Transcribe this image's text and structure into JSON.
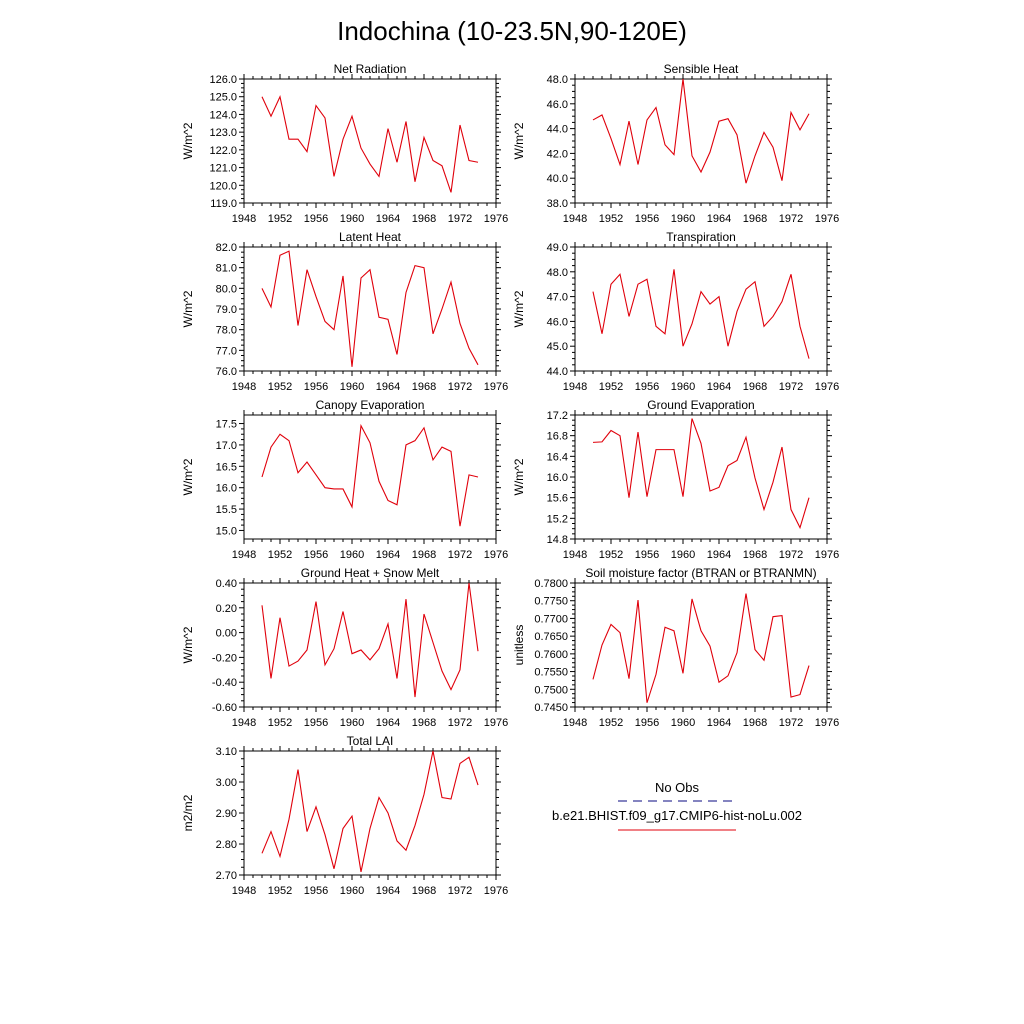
{
  "page": {
    "title": "Indochina (10-23.5N,90-120E)"
  },
  "legend": {
    "obs_label": "No Obs",
    "obs_color": "#3a3a9a",
    "model_label": "b.e21.BHIST.f09_g17.CMIP6-hist-noLu.002",
    "model_color": "#e0000b"
  },
  "chart_data": [
    {
      "type": "line",
      "title": "Net Radiation",
      "ylabel": "W/m^2",
      "xlim": [
        1948,
        1976
      ],
      "ylim": [
        119,
        126
      ],
      "xticks": [
        "1948",
        "1952",
        "1956",
        "1960",
        "1964",
        "1968",
        "1972",
        "1976"
      ],
      "yticks": [
        "119.0",
        "120.0",
        "121.0",
        "122.0",
        "123.0",
        "124.0",
        "125.0",
        "126.0"
      ],
      "grid": false,
      "x": [
        1950,
        1951,
        1952,
        1953,
        1954,
        1955,
        1956,
        1957,
        1958,
        1959,
        1960,
        1961,
        1962,
        1963,
        1964,
        1965,
        1966,
        1967,
        1968,
        1969,
        1970,
        1971,
        1972,
        1973,
        1974
      ],
      "series": [
        {
          "values": [
            125.0,
            123.9,
            125.0,
            122.6,
            122.6,
            121.9,
            124.5,
            123.8,
            120.5,
            122.6,
            123.9,
            122.1,
            121.2,
            120.5,
            123.2,
            121.3,
            123.6,
            120.2,
            122.7,
            121.4,
            121.1,
            119.6,
            123.4,
            121.4,
            121.3
          ]
        }
      ]
    },
    {
      "type": "line",
      "title": "Sensible Heat",
      "ylabel": "W/m^2",
      "xlim": [
        1948,
        1976
      ],
      "ylim": [
        38,
        48
      ],
      "xticks": [
        "1948",
        "1952",
        "1956",
        "1960",
        "1964",
        "1968",
        "1972",
        "1976"
      ],
      "yticks": [
        "38.0",
        "40.0",
        "42.0",
        "44.0",
        "46.0",
        "48.0"
      ],
      "grid": false,
      "x": [
        1950,
        1951,
        1952,
        1953,
        1954,
        1955,
        1956,
        1957,
        1958,
        1959,
        1960,
        1961,
        1962,
        1963,
        1964,
        1965,
        1966,
        1967,
        1968,
        1969,
        1970,
        1971,
        1972,
        1973,
        1974
      ],
      "series": [
        {
          "values": [
            44.7,
            45.1,
            43.2,
            41.1,
            44.6,
            41.1,
            44.7,
            45.7,
            42.7,
            41.9,
            48.0,
            41.8,
            40.5,
            42.1,
            44.6,
            44.8,
            43.5,
            39.6,
            41.8,
            43.7,
            42.5,
            39.8,
            45.3,
            43.9,
            45.2
          ]
        }
      ]
    },
    {
      "type": "line",
      "title": "Latent Heat",
      "ylabel": "W/m^2",
      "xlim": [
        1948,
        1976
      ],
      "ylim": [
        76,
        82
      ],
      "xticks": [
        "1948",
        "1952",
        "1956",
        "1960",
        "1964",
        "1968",
        "1972",
        "1976"
      ],
      "yticks": [
        "76.0",
        "77.0",
        "78.0",
        "79.0",
        "80.0",
        "81.0",
        "82.0"
      ],
      "grid": false,
      "x": [
        1950,
        1951,
        1952,
        1953,
        1954,
        1955,
        1956,
        1957,
        1958,
        1959,
        1960,
        1961,
        1962,
        1963,
        1964,
        1965,
        1966,
        1967,
        1968,
        1969,
        1970,
        1971,
        1972,
        1973,
        1974
      ],
      "series": [
        {
          "values": [
            80.0,
            79.1,
            81.6,
            81.8,
            78.2,
            80.9,
            79.6,
            78.4,
            78.0,
            80.6,
            76.2,
            80.5,
            80.9,
            78.6,
            78.5,
            76.8,
            79.8,
            81.1,
            81.0,
            77.8,
            79.0,
            80.3,
            78.3,
            77.1,
            76.3
          ]
        }
      ]
    },
    {
      "type": "line",
      "title": "Transpiration",
      "ylabel": "W/m^2",
      "xlim": [
        1948,
        1976
      ],
      "ylim": [
        44,
        49
      ],
      "xticks": [
        "1948",
        "1952",
        "1956",
        "1960",
        "1964",
        "1968",
        "1972",
        "1976"
      ],
      "yticks": [
        "44.0",
        "45.0",
        "46.0",
        "47.0",
        "48.0",
        "49.0"
      ],
      "grid": false,
      "x": [
        1950,
        1951,
        1952,
        1953,
        1954,
        1955,
        1956,
        1957,
        1958,
        1959,
        1960,
        1961,
        1962,
        1963,
        1964,
        1965,
        1966,
        1967,
        1968,
        1969,
        1970,
        1971,
        1972,
        1973,
        1974
      ],
      "series": [
        {
          "values": [
            47.2,
            45.5,
            47.5,
            47.9,
            46.2,
            47.5,
            47.7,
            45.8,
            45.5,
            48.1,
            45.0,
            45.9,
            47.2,
            46.7,
            47.0,
            45.0,
            46.4,
            47.3,
            47.6,
            45.8,
            46.2,
            46.8,
            47.9,
            45.8,
            44.5
          ]
        }
      ]
    },
    {
      "type": "line",
      "title": "Canopy Evaporation",
      "ylabel": "W/m^2",
      "xlim": [
        1948,
        1976
      ],
      "ylim": [
        14.8,
        17.7
      ],
      "xticks": [
        "1948",
        "1952",
        "1956",
        "1960",
        "1964",
        "1968",
        "1972",
        "1976"
      ],
      "yticks": [
        "15.0",
        "15.5",
        "16.0",
        "16.5",
        "17.0",
        "17.5"
      ],
      "grid": false,
      "x": [
        1950,
        1951,
        1952,
        1953,
        1954,
        1955,
        1956,
        1957,
        1958,
        1959,
        1960,
        1961,
        1962,
        1963,
        1964,
        1965,
        1966,
        1967,
        1968,
        1969,
        1970,
        1971,
        1972,
        1973,
        1974
      ],
      "series": [
        {
          "values": [
            16.25,
            16.95,
            17.25,
            17.1,
            16.35,
            16.6,
            16.3,
            16.0,
            15.97,
            15.97,
            15.55,
            17.45,
            17.05,
            16.15,
            15.7,
            15.6,
            17.0,
            17.1,
            17.4,
            16.65,
            16.95,
            16.85,
            15.1,
            16.3,
            16.25
          ]
        }
      ]
    },
    {
      "type": "line",
      "title": "Ground Evaporation",
      "ylabel": "W/m^2",
      "xlim": [
        1948,
        1976
      ],
      "ylim": [
        14.8,
        17.2
      ],
      "xticks": [
        "1948",
        "1952",
        "1956",
        "1960",
        "1964",
        "1968",
        "1972",
        "1976"
      ],
      "yticks": [
        "14.8",
        "15.2",
        "15.6",
        "16.0",
        "16.4",
        "16.8",
        "17.2"
      ],
      "grid": false,
      "x": [
        1950,
        1951,
        1952,
        1953,
        1954,
        1955,
        1956,
        1957,
        1958,
        1959,
        1960,
        1961,
        1962,
        1963,
        1964,
        1965,
        1966,
        1967,
        1968,
        1969,
        1970,
        1971,
        1972,
        1973,
        1974
      ],
      "series": [
        {
          "values": [
            16.67,
            16.68,
            16.9,
            16.8,
            15.6,
            16.87,
            15.62,
            16.53,
            16.53,
            16.53,
            15.62,
            17.13,
            16.65,
            15.73,
            15.8,
            16.22,
            16.32,
            16.77,
            15.98,
            15.37,
            15.9,
            16.58,
            15.37,
            15.02,
            15.6
          ]
        }
      ]
    },
    {
      "type": "line",
      "title": "Ground Heat + Snow Melt",
      "ylabel": "W/m^2",
      "xlim": [
        1948,
        1976
      ],
      "ylim": [
        -0.6,
        0.4
      ],
      "xticks": [
        "1948",
        "1952",
        "1956",
        "1960",
        "1964",
        "1968",
        "1972",
        "1976"
      ],
      "yticks": [
        "-0.60",
        "-0.40",
        "-0.20",
        "0.00",
        "0.20",
        "0.40"
      ],
      "grid": false,
      "x": [
        1950,
        1951,
        1952,
        1953,
        1954,
        1955,
        1956,
        1957,
        1958,
        1959,
        1960,
        1961,
        1962,
        1963,
        1964,
        1965,
        1966,
        1967,
        1968,
        1969,
        1970,
        1971,
        1972,
        1973,
        1974
      ],
      "series": [
        {
          "values": [
            0.22,
            -0.37,
            0.12,
            -0.27,
            -0.23,
            -0.14,
            0.25,
            -0.26,
            -0.13,
            0.17,
            -0.17,
            -0.14,
            -0.22,
            -0.13,
            0.07,
            -0.37,
            0.27,
            -0.52,
            0.15,
            -0.08,
            -0.31,
            -0.46,
            -0.3,
            0.4,
            -0.15
          ]
        }
      ]
    },
    {
      "type": "line",
      "title": "Soil moisture factor (BTRAN or BTRANMN)",
      "ylabel": "unitless",
      "xlim": [
        1948,
        1976
      ],
      "ylim": [
        0.745,
        0.78
      ],
      "xticks": [
        "1948",
        "1952",
        "1956",
        "1960",
        "1964",
        "1968",
        "1972",
        "1976"
      ],
      "yticks": [
        "0.7450",
        "0.7500",
        "0.7550",
        "0.7600",
        "0.7650",
        "0.7700",
        "0.7750",
        "0.7800"
      ],
      "grid": false,
      "x": [
        1950,
        1951,
        1952,
        1953,
        1954,
        1955,
        1956,
        1957,
        1958,
        1959,
        1960,
        1961,
        1962,
        1963,
        1964,
        1965,
        1966,
        1967,
        1968,
        1969,
        1970,
        1971,
        1972,
        1973,
        1974
      ],
      "series": [
        {
          "values": [
            0.7528,
            0.7625,
            0.7683,
            0.766,
            0.753,
            0.7752,
            0.7462,
            0.7542,
            0.7675,
            0.7665,
            0.7545,
            0.7755,
            0.7665,
            0.7622,
            0.752,
            0.7538,
            0.7603,
            0.777,
            0.7612,
            0.7582,
            0.7705,
            0.7708,
            0.7478,
            0.7485,
            0.7567
          ]
        }
      ]
    },
    {
      "type": "line",
      "title": "Total LAI",
      "ylabel": "m2/m2",
      "xlim": [
        1948,
        1976
      ],
      "ylim": [
        2.7,
        3.1
      ],
      "xticks": [
        "1948",
        "1952",
        "1956",
        "1960",
        "1964",
        "1968",
        "1972",
        "1976"
      ],
      "yticks": [
        "2.70",
        "2.80",
        "2.90",
        "3.00",
        "3.10"
      ],
      "grid": false,
      "x": [
        1950,
        1951,
        1952,
        1953,
        1954,
        1955,
        1956,
        1957,
        1958,
        1959,
        1960,
        1961,
        1962,
        1963,
        1964,
        1965,
        1966,
        1967,
        1968,
        1969,
        1970,
        1971,
        1972,
        1973,
        1974
      ],
      "series": [
        {
          "values": [
            2.77,
            2.84,
            2.76,
            2.88,
            3.04,
            2.84,
            2.92,
            2.83,
            2.72,
            2.85,
            2.89,
            2.71,
            2.85,
            2.95,
            2.9,
            2.81,
            2.78,
            2.86,
            2.96,
            3.1,
            2.95,
            2.945,
            3.06,
            3.08,
            2.99
          ]
        }
      ]
    }
  ]
}
